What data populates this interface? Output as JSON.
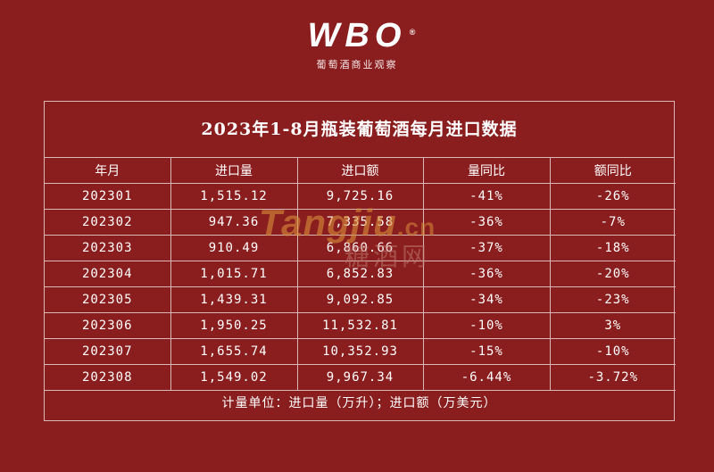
{
  "logo": {
    "mark": "WBO",
    "reg": "®",
    "subtitle": "葡萄酒商业观察"
  },
  "watermark": {
    "brand": "Tangjiu",
    "suffix": ".cn",
    "cn": "糖酒网"
  },
  "table": {
    "title": "2023年1-8月瓶装葡萄酒每月进口数据",
    "headers": [
      "年月",
      "进口量",
      "进口额",
      "量同比",
      "额同比"
    ],
    "rows": [
      [
        "202301",
        "1,515.12",
        "9,725.16",
        "-41%",
        "-26%"
      ],
      [
        "202302",
        "947.36",
        "7,335.58",
        "-36%",
        "-7%"
      ],
      [
        "202303",
        "910.49",
        "6,860.66",
        "-37%",
        "-18%"
      ],
      [
        "202304",
        "1,015.71",
        "6,852.83",
        "-36%",
        "-20%"
      ],
      [
        "202305",
        "1,439.31",
        "9,092.85",
        "-34%",
        "-23%"
      ],
      [
        "202306",
        "1,950.25",
        "11,532.81",
        "-10%",
        "3%"
      ],
      [
        "202307",
        "1,655.74",
        "10,352.93",
        "-15%",
        "-10%"
      ],
      [
        "202308",
        "1,549.02",
        "9,967.34",
        "-6.44%",
        "-3.72%"
      ]
    ],
    "note": "计量单位：进口量（万升）；进口额（万美元）"
  }
}
